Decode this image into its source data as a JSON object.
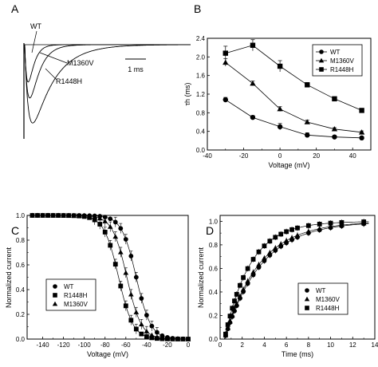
{
  "chart_data": [
    {
      "panel": "A",
      "type": "line",
      "annotations": [
        "WT",
        "M1360V",
        "R1448H"
      ],
      "scalebar_label": "1 ms",
      "series": [
        {
          "label": "WT",
          "t0": 0.0,
          "tau_h": 0.25
        },
        {
          "label": "M1360V",
          "t0": 0.0,
          "tau_h": 0.45
        },
        {
          "label": "R1448H",
          "t0": 0.0,
          "tau_h": 1.05
        }
      ]
    },
    {
      "panel": "B",
      "type": "line",
      "ylabel": "τh (ms)",
      "xlabel": "Voltage (mV)",
      "xlim": [
        -40,
        50
      ],
      "ylim": [
        0.0,
        2.4
      ],
      "xticks": [
        -40,
        -20,
        0,
        20,
        40
      ],
      "yticks": [
        0.0,
        0.4,
        0.8,
        1.2,
        1.6,
        2.0,
        2.4
      ],
      "legend_position": "top-right",
      "series": [
        {
          "name": "WT",
          "marker": "circle",
          "x": [
            -30,
            -15,
            0,
            15,
            30,
            45
          ],
          "y": [
            1.08,
            0.7,
            0.5,
            0.32,
            0.28,
            0.26
          ],
          "err": [
            0.05,
            0.04,
            0.07,
            0.05,
            0.03,
            0.03
          ]
        },
        {
          "name": "M1360V",
          "marker": "triangle",
          "x": [
            -30,
            -15,
            0,
            15,
            30,
            45
          ],
          "y": [
            1.88,
            1.43,
            0.88,
            0.6,
            0.45,
            0.38
          ],
          "err": [
            0.08,
            0.05,
            0.05,
            0.04,
            0.03,
            0.03
          ]
        },
        {
          "name": "R1448H",
          "marker": "square",
          "x": [
            -30,
            -15,
            0,
            15,
            30,
            45
          ],
          "y": [
            2.08,
            2.25,
            1.8,
            1.4,
            1.1,
            0.85
          ],
          "err": [
            0.15,
            0.12,
            0.12,
            0.05,
            0.04,
            0.03
          ]
        }
      ]
    },
    {
      "panel": "C",
      "type": "scatter",
      "ylabel": "Normalized current",
      "xlabel": "Voltage (mV)",
      "xlim": [
        -155,
        0
      ],
      "ylim": [
        0.0,
        1.0
      ],
      "xticks": [
        -140,
        -120,
        -100,
        -80,
        -60,
        -40,
        -20,
        0
      ],
      "yticks": [
        0.0,
        0.2,
        0.4,
        0.6,
        0.8,
        1.0
      ],
      "legend_position": "bottom-left",
      "v_start": -150,
      "v_step": 5,
      "series": [
        {
          "name": "WT",
          "marker": "circle",
          "v_half": -50,
          "k": 7
        },
        {
          "name": "R1448H",
          "marker": "square",
          "v_half": -67,
          "k": 7
        },
        {
          "name": "M1360V",
          "marker": "triangle",
          "v_half": -59,
          "k": 7
        }
      ]
    },
    {
      "panel": "D",
      "type": "scatter",
      "ylabel": "Normalized current",
      "xlabel": "Time (ms)",
      "xlim": [
        0,
        14
      ],
      "ylim": [
        0.0,
        1.05
      ],
      "xticks": [
        0,
        2,
        4,
        6,
        8,
        10,
        12,
        14
      ],
      "yticks": [
        0.0,
        0.2,
        0.4,
        0.6,
        0.8,
        1.0
      ],
      "legend_position": "bottom-right",
      "t_points": [
        0.5,
        0.7,
        0.9,
        1.1,
        1.3,
        1.5,
        1.8,
        2.1,
        2.5,
        3.0,
        3.5,
        4.0,
        4.5,
        5.0,
        5.5,
        6.0,
        6.5,
        7.0,
        8.0,
        9.0,
        10.0,
        11.0,
        13.0
      ],
      "series": [
        {
          "name": "WT",
          "marker": "circle",
          "tau": 3.3,
          "delay": 0.4
        },
        {
          "name": "M1360V",
          "marker": "triangle",
          "tau": 3.1,
          "delay": 0.4
        },
        {
          "name": "R1448H",
          "marker": "square",
          "tau": 2.3,
          "delay": 0.4
        }
      ]
    }
  ],
  "panel_labels": [
    "A",
    "B",
    "C",
    "D"
  ]
}
